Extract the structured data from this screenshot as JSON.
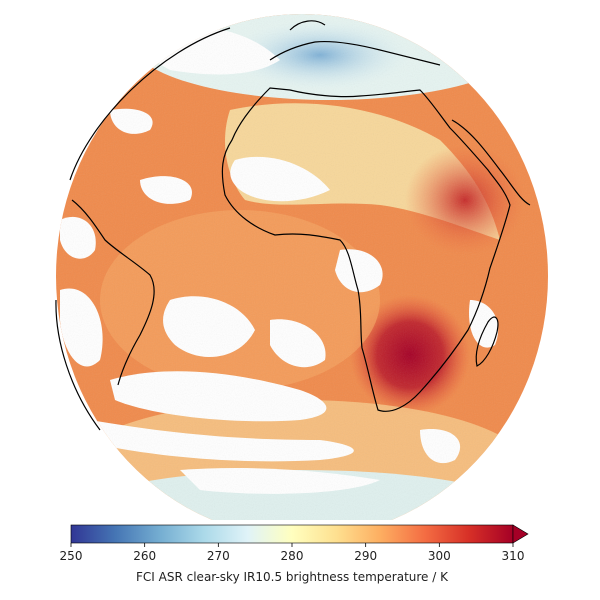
{
  "colorbar": {
    "label": "FCI ASR clear-sky IR10.5 brightness temperature / K",
    "min": 250,
    "max": 310,
    "extend": "max",
    "ticks": [
      "250",
      "260",
      "270",
      "280",
      "290",
      "300",
      "310"
    ],
    "colormap": [
      "#313695",
      "#4575b4",
      "#74add1",
      "#abd9e9",
      "#e0f3f8",
      "#ffffbf",
      "#fee090",
      "#fdae61",
      "#f46d43",
      "#d73027",
      "#a50026"
    ]
  },
  "map": {
    "projection": "geostationary full disk",
    "coastline_color": "#000000",
    "background_color": "#ffffff"
  }
}
